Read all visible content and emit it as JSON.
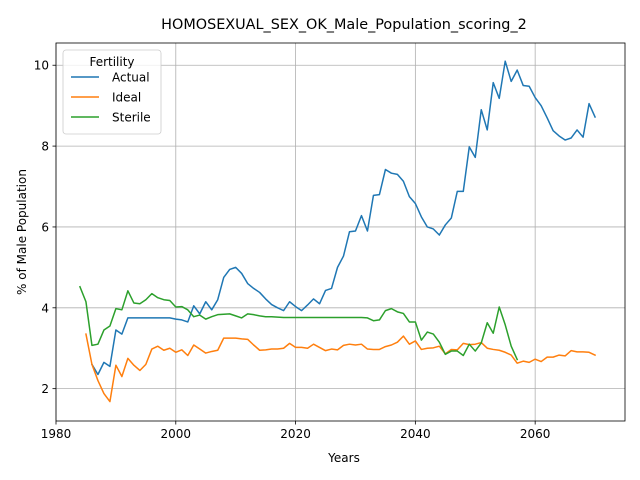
{
  "chart_data": {
    "type": "line",
    "title": "HOMOSEXUAL_SEX_OK_Male_Population_scoring_2",
    "xlabel": "Years",
    "ylabel": "% of Male Population",
    "xlim": [
      1980,
      2075
    ],
    "ylim": [
      1.2,
      10.55
    ],
    "xticks": [
      1980,
      2000,
      2020,
      2040,
      2060
    ],
    "yticks": [
      2,
      4,
      6,
      8,
      10
    ],
    "grid": true,
    "legend": {
      "title": "Fertility",
      "placement": "upper-left"
    },
    "series": [
      {
        "name": "Actual",
        "color": "#1f77b4",
        "x": [
          1986,
          1987,
          1988,
          1989,
          1990,
          1991,
          1992,
          1993,
          1994,
          1995,
          1996,
          1997,
          1998,
          1999,
          2000,
          2001,
          2002,
          2003,
          2004,
          2005,
          2006,
          2007,
          2008,
          2009,
          2010,
          2011,
          2012,
          2013,
          2014,
          2015,
          2016,
          2017,
          2018,
          2019,
          2020,
          2021,
          2022,
          2023,
          2024,
          2025,
          2026,
          2027,
          2028,
          2029,
          2030,
          2031,
          2032,
          2033,
          2034,
          2035,
          2036,
          2037,
          2038,
          2039,
          2040,
          2041,
          2042,
          2043,
          2044,
          2045,
          2046,
          2047,
          2048,
          2049,
          2050,
          2051,
          2052,
          2053,
          2054,
          2055,
          2056,
          2057,
          2058,
          2059,
          2060,
          2061,
          2062,
          2063,
          2064,
          2065,
          2066,
          2067,
          2068,
          2069,
          2070
        ],
        "values": [
          2.6,
          2.35,
          2.65,
          2.55,
          3.45,
          3.35,
          3.75,
          3.75,
          3.75,
          3.75,
          3.75,
          3.75,
          3.75,
          3.75,
          3.72,
          3.7,
          3.65,
          4.05,
          3.85,
          4.15,
          3.95,
          4.2,
          4.75,
          4.95,
          5.0,
          4.85,
          4.6,
          4.48,
          4.38,
          4.22,
          4.08,
          4.0,
          3.93,
          4.15,
          4.03,
          3.93,
          4.07,
          4.22,
          4.1,
          4.43,
          4.48,
          5.0,
          5.28,
          5.88,
          5.9,
          6.28,
          5.9,
          6.78,
          6.8,
          7.42,
          7.33,
          7.3,
          7.13,
          6.75,
          6.58,
          6.25,
          6.0,
          5.95,
          5.8,
          6.05,
          6.22,
          6.88,
          6.88,
          7.98,
          7.72,
          8.9,
          8.4,
          9.57,
          9.18,
          10.1,
          9.6,
          9.88,
          9.5,
          9.48,
          9.2,
          9.0,
          8.7,
          8.38,
          8.25,
          8.15,
          8.2,
          8.4,
          8.22,
          9.05,
          8.72
        ]
      },
      {
        "name": "Ideal",
        "color": "#ff7f0e",
        "x": [
          1985,
          1986,
          1987,
          1988,
          1989,
          1990,
          1991,
          1992,
          1993,
          1994,
          1995,
          1996,
          1997,
          1998,
          1999,
          2000,
          2001,
          2002,
          2003,
          2004,
          2005,
          2006,
          2007,
          2008,
          2009,
          2010,
          2011,
          2012,
          2013,
          2014,
          2015,
          2016,
          2017,
          2018,
          2019,
          2020,
          2021,
          2022,
          2023,
          2024,
          2025,
          2026,
          2027,
          2028,
          2029,
          2030,
          2031,
          2032,
          2033,
          2034,
          2035,
          2036,
          2037,
          2038,
          2039,
          2040,
          2041,
          2042,
          2043,
          2044,
          2045,
          2046,
          2047,
          2048,
          2049,
          2050,
          2051,
          2052,
          2053,
          2054,
          2055,
          2056,
          2057,
          2058,
          2059,
          2060,
          2061,
          2062,
          2063,
          2064,
          2065,
          2066,
          2067,
          2068,
          2069,
          2070
        ],
        "values": [
          3.35,
          2.6,
          2.2,
          1.88,
          1.68,
          2.58,
          2.3,
          2.75,
          2.58,
          2.45,
          2.6,
          2.98,
          3.05,
          2.95,
          3.0,
          2.9,
          2.96,
          2.82,
          3.08,
          2.98,
          2.88,
          2.92,
          2.95,
          3.25,
          3.25,
          3.25,
          3.23,
          3.22,
          3.08,
          2.95,
          2.96,
          2.98,
          2.98,
          3.0,
          3.12,
          3.02,
          3.02,
          3.0,
          3.1,
          3.02,
          2.94,
          2.98,
          2.96,
          3.07,
          3.1,
          3.08,
          3.1,
          2.98,
          2.97,
          2.97,
          3.04,
          3.08,
          3.15,
          3.3,
          3.1,
          3.18,
          2.97,
          3.0,
          3.01,
          3.05,
          2.86,
          2.97,
          2.96,
          3.12,
          3.09,
          3.1,
          3.14,
          3.0,
          2.97,
          2.95,
          2.9,
          2.83,
          2.63,
          2.68,
          2.65,
          2.73,
          2.67,
          2.78,
          2.78,
          2.83,
          2.81,
          2.94,
          2.91,
          2.91,
          2.9,
          2.83
        ]
      },
      {
        "name": "Sterile",
        "color": "#2ca02c",
        "x": [
          1984,
          1985,
          1986,
          1987,
          1988,
          1989,
          1990,
          1991,
          1992,
          1993,
          1994,
          1995,
          1996,
          1997,
          1998,
          1999,
          2000,
          2001,
          2002,
          2003,
          2004,
          2005,
          2006,
          2007,
          2008,
          2009,
          2010,
          2011,
          2012,
          2013,
          2014,
          2015,
          2016,
          2017,
          2018,
          2019,
          2020,
          2021,
          2022,
          2023,
          2024,
          2025,
          2026,
          2027,
          2028,
          2029,
          2030,
          2031,
          2032,
          2033,
          2034,
          2035,
          2036,
          2037,
          2038,
          2039,
          2040,
          2041,
          2042,
          2043,
          2044,
          2045,
          2046,
          2047,
          2048,
          2049,
          2050,
          2051,
          2052,
          2053,
          2054,
          2055,
          2056,
          2057
        ],
        "values": [
          4.52,
          4.15,
          3.07,
          3.1,
          3.45,
          3.55,
          3.98,
          3.95,
          4.42,
          4.12,
          4.1,
          4.2,
          4.35,
          4.25,
          4.2,
          4.18,
          4.02,
          4.03,
          3.95,
          3.78,
          3.82,
          3.72,
          3.78,
          3.83,
          3.84,
          3.85,
          3.8,
          3.75,
          3.85,
          3.83,
          3.8,
          3.78,
          3.78,
          3.77,
          3.76,
          3.76,
          3.76,
          3.76,
          3.76,
          3.76,
          3.76,
          3.76,
          3.76,
          3.76,
          3.76,
          3.76,
          3.76,
          3.76,
          3.75,
          3.68,
          3.7,
          3.93,
          3.98,
          3.9,
          3.86,
          3.65,
          3.65,
          3.2,
          3.4,
          3.35,
          3.15,
          2.85,
          2.93,
          2.93,
          2.82,
          3.1,
          2.93,
          3.13,
          3.63,
          3.37,
          4.02,
          3.58,
          3.05,
          2.72
        ]
      }
    ]
  }
}
